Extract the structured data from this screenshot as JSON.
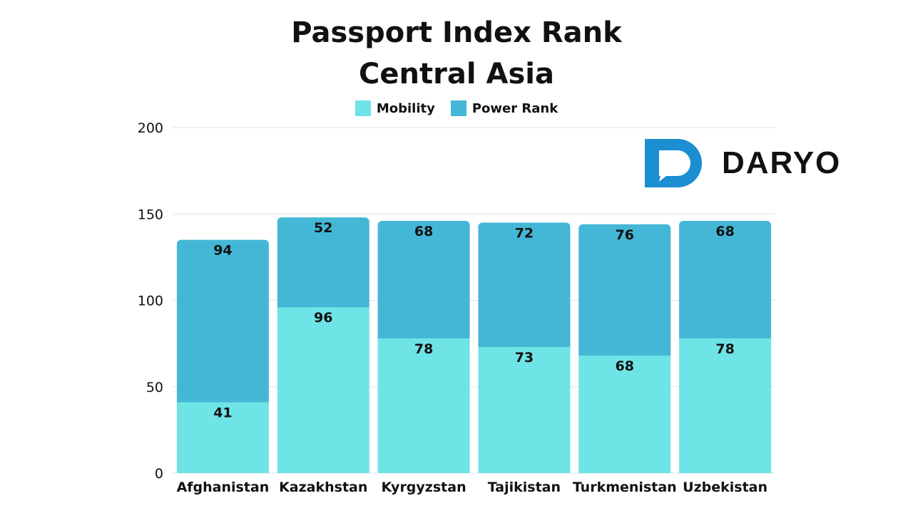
{
  "title_line1": "Passport Index Rank",
  "title_line2": "Central Asia",
  "brand": "DARYO",
  "colors": {
    "mobility": "#6ee4e6",
    "power": "#44b7d6",
    "logo": "#1b8fd2",
    "grid": "#e2e2e2",
    "text": "#111111"
  },
  "chart_data": {
    "type": "bar",
    "stacked": true,
    "categories": [
      "Afghanistan",
      "Kazakhstan",
      "Kyrgyzstan",
      "Tajikistan",
      "Turkmenistan",
      "Uzbekistan"
    ],
    "series": [
      {
        "name": "Mobility",
        "values": [
          41,
          96,
          78,
          73,
          68,
          78
        ]
      },
      {
        "name": "Power Rank",
        "values": [
          94,
          52,
          68,
          72,
          76,
          68
        ]
      }
    ],
    "ylim": [
      0,
      200
    ],
    "yticks": [
      "0",
      "50",
      "100",
      "150",
      "200"
    ],
    "title": "Passport Index Rank Central Asia",
    "grid": true,
    "legend": "top"
  }
}
